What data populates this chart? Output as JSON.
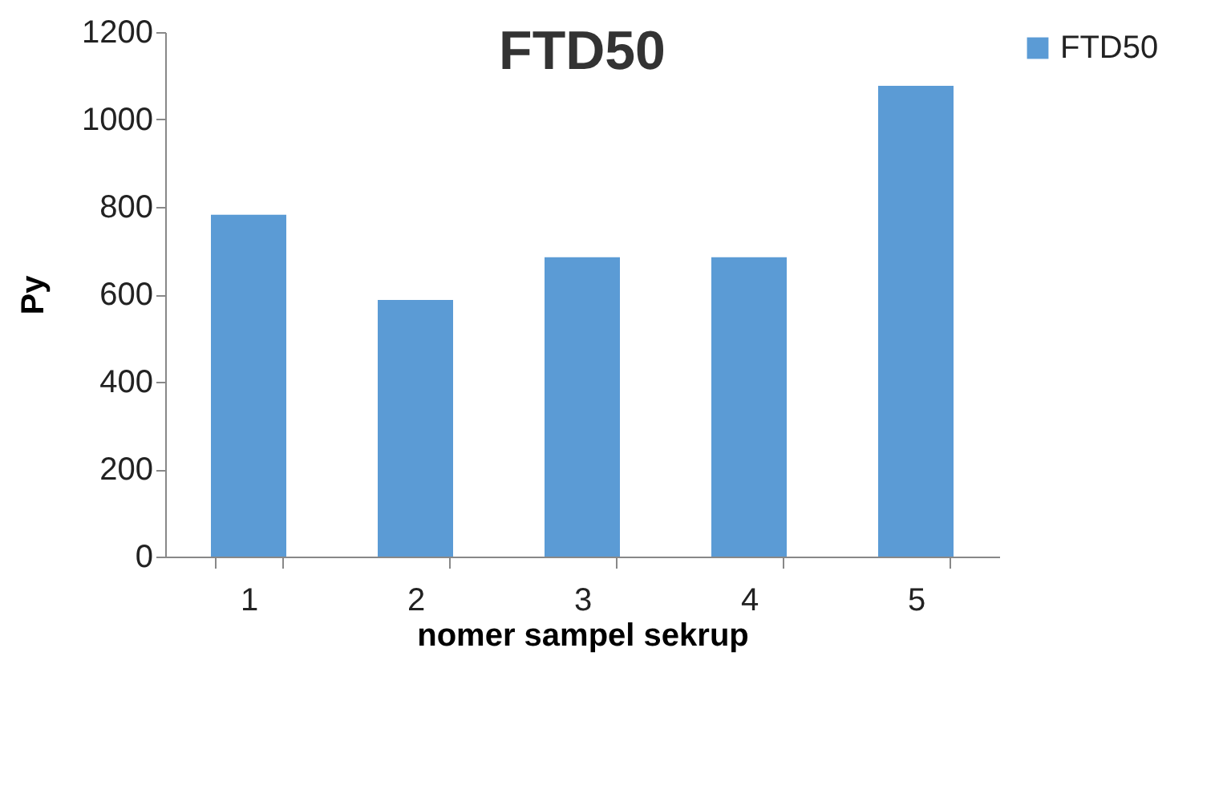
{
  "chart_data": {
    "type": "bar",
    "title": "FTD50",
    "xlabel": "nomer sampel sekrup",
    "ylabel": "Py",
    "categories": [
      "1",
      "2",
      "3",
      "4",
      "5"
    ],
    "series": [
      {
        "name": "FTD50",
        "color": "#5b9bd5",
        "values": [
          782,
          587,
          685,
          685,
          1077
        ]
      }
    ],
    "ylim": [
      0,
      1200
    ],
    "yticks": [
      0,
      200,
      400,
      600,
      800,
      1000,
      1200
    ],
    "grid": false,
    "legend": "right"
  }
}
